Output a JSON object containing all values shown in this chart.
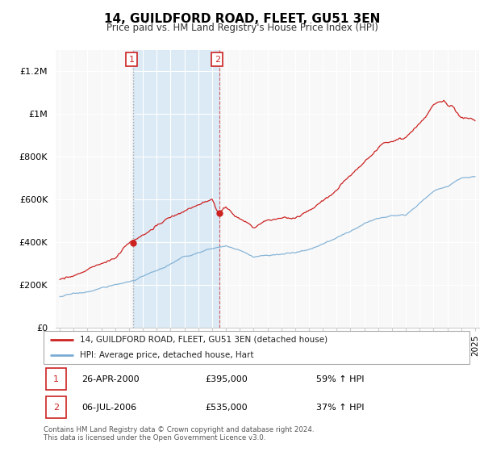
{
  "title": "14, GUILDFORD ROAD, FLEET, GU51 3EN",
  "subtitle": "Price paid vs. HM Land Registry's House Price Index (HPI)",
  "legend_line1": "14, GUILDFORD ROAD, FLEET, GU51 3EN (detached house)",
  "legend_line2": "HPI: Average price, detached house, Hart",
  "annotation1_date": "26-APR-2000",
  "annotation1_price": "£395,000",
  "annotation1_hpi": "59% ↑ HPI",
  "annotation2_date": "06-JUL-2006",
  "annotation2_price": "£535,000",
  "annotation2_hpi": "37% ↑ HPI",
  "footer": "Contains HM Land Registry data © Crown copyright and database right 2024.\nThis data is licensed under the Open Government Licence v3.0.",
  "red_color": "#cc2222",
  "blue_color": "#7aadd4",
  "shade_color": "#d8e8f5",
  "annotation_box_color": "#cc2222",
  "ylim": [
    0,
    1300000
  ],
  "yticks": [
    0,
    200000,
    400000,
    600000,
    800000,
    1000000,
    1200000
  ],
  "ytick_labels": [
    "£0",
    "£200K",
    "£400K",
    "£600K",
    "£800K",
    "£1M",
    "£1.2M"
  ],
  "sale1_x": 2000.32,
  "sale1_y": 395000,
  "sale2_x": 2006.52,
  "sale2_y": 535000,
  "shade_x0": 2000.32,
  "shade_x1": 2006.52,
  "xmin": 1994.7,
  "xmax": 2025.3
}
